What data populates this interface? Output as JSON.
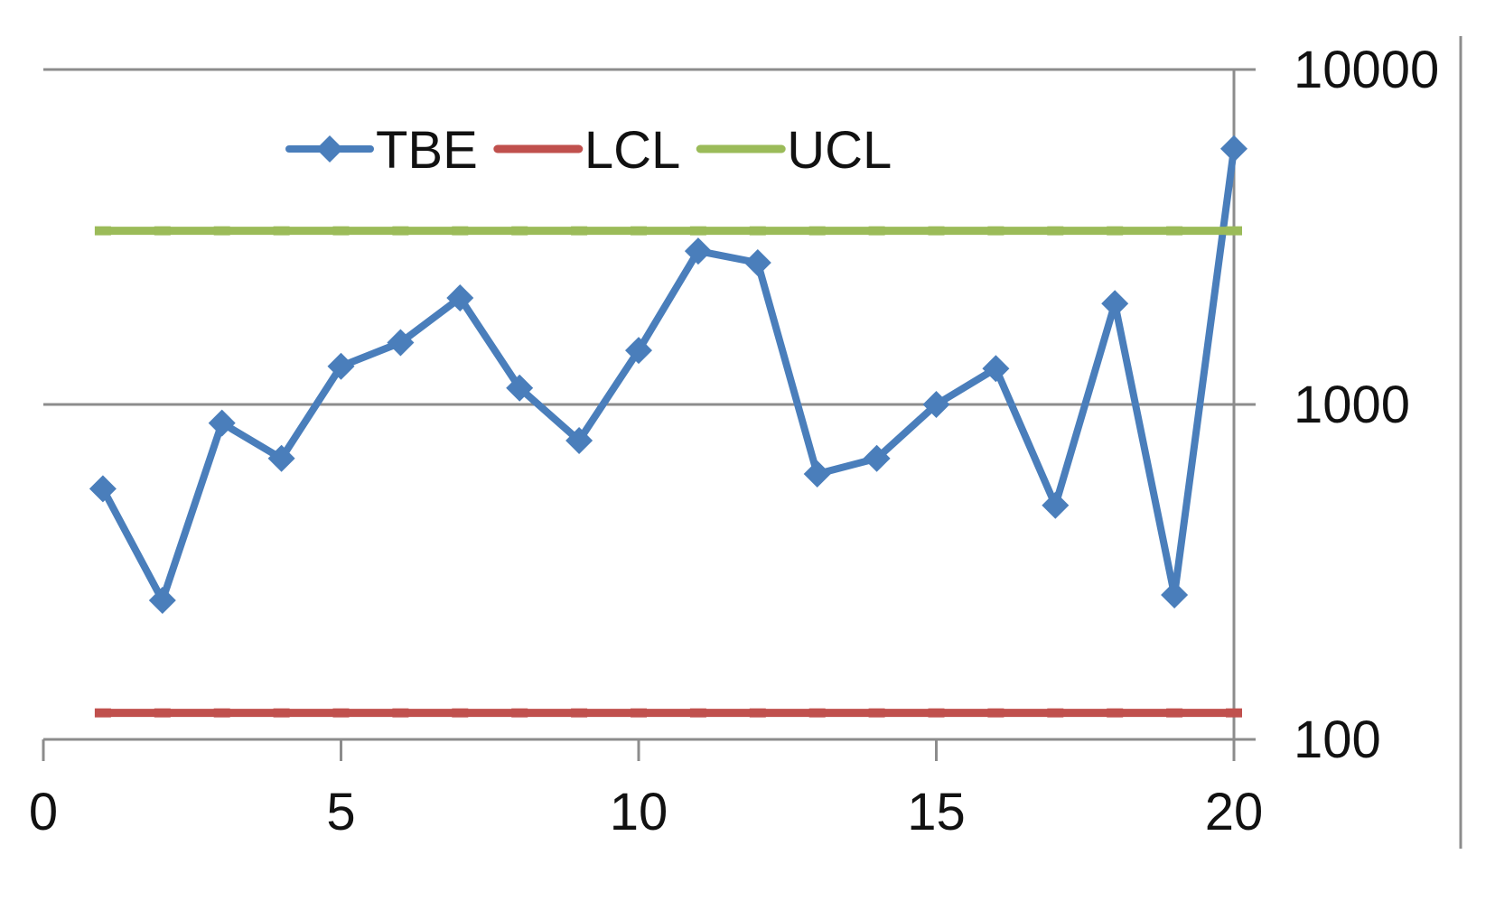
{
  "chart_data": {
    "type": "line",
    "title": "",
    "xlabel": "",
    "ylabel": "",
    "x_axis": {
      "min": 0,
      "max": 20,
      "ticks": [
        0,
        5,
        10,
        15,
        20
      ],
      "tick_labels": [
        "0",
        "5",
        "10",
        "15",
        "20"
      ]
    },
    "y_axis": {
      "scale": "log",
      "min": 100,
      "max": 10000,
      "ticks": [
        100,
        1000,
        10000
      ],
      "tick_labels": [
        "100",
        "1000",
        "10000"
      ],
      "position": "right"
    },
    "grid": {
      "horizontal": true,
      "vertical": false
    },
    "legend": {
      "position": "top-left",
      "entries": [
        "TBE",
        "LCL",
        "UCL"
      ]
    },
    "series": [
      {
        "name": "TBE",
        "color": "#4a7ebb",
        "marker": "diamond",
        "x": [
          1,
          2,
          3,
          4,
          5,
          6,
          7,
          8,
          9,
          10,
          11,
          12,
          13,
          14,
          15,
          16,
          17,
          18,
          19,
          20
        ],
        "values": [
          560,
          260,
          880,
          690,
          1300,
          1530,
          2080,
          1120,
          780,
          1450,
          2870,
          2650,
          620,
          690,
          1000,
          1280,
          500,
          2000,
          270,
          5800
        ]
      },
      {
        "name": "LCL",
        "color": "#c0504d",
        "marker": "dash",
        "x": [
          1,
          2,
          3,
          4,
          5,
          6,
          7,
          8,
          9,
          10,
          11,
          12,
          13,
          14,
          15,
          16,
          17,
          18,
          19,
          20
        ],
        "values": [
          120,
          120,
          120,
          120,
          120,
          120,
          120,
          120,
          120,
          120,
          120,
          120,
          120,
          120,
          120,
          120,
          120,
          120,
          120,
          120
        ]
      },
      {
        "name": "UCL",
        "color": "#9bbb59",
        "marker": "dash",
        "x": [
          1,
          2,
          3,
          4,
          5,
          6,
          7,
          8,
          9,
          10,
          11,
          12,
          13,
          14,
          15,
          16,
          17,
          18,
          19,
          20
        ],
        "values": [
          3300,
          3300,
          3300,
          3300,
          3300,
          3300,
          3300,
          3300,
          3300,
          3300,
          3300,
          3300,
          3300,
          3300,
          3300,
          3300,
          3300,
          3300,
          3300,
          3300
        ]
      }
    ]
  }
}
